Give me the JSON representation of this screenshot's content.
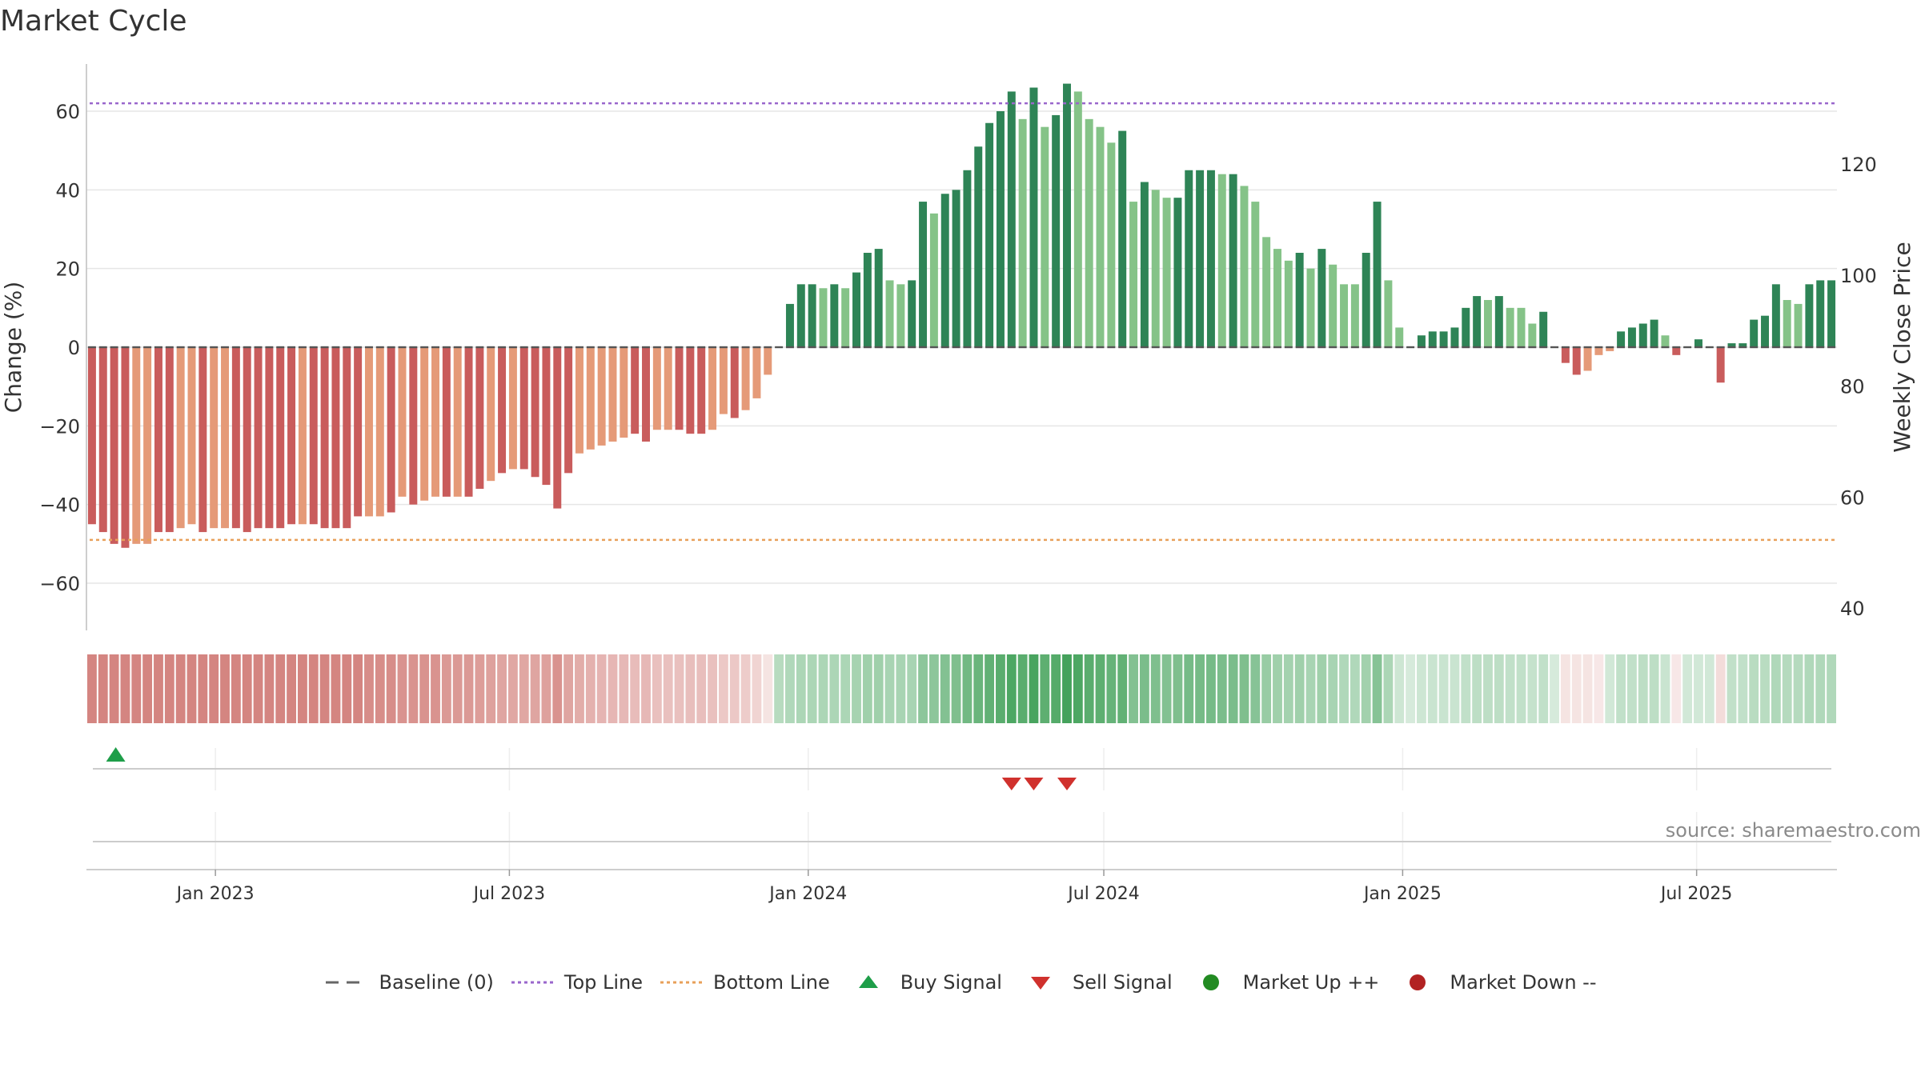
{
  "title": "Market Cycle",
  "source": "source: sharemaestro.com",
  "colors": {
    "down_strong": "#c95c5c",
    "down_light": "#e59a78",
    "up_strong": "#2e8456",
    "up_light": "#85c388",
    "top_line": "#9a66cc",
    "bottom_line": "#e8a05a",
    "baseline": "#666666",
    "buy": "#1e9e49",
    "sell": "#d0312d",
    "market_up": "#228b22",
    "market_down": "#b22222"
  },
  "legend": [
    {
      "label": "Baseline (0)",
      "icon": "dash-line"
    },
    {
      "label": "Top Line",
      "icon": "dotted-purple-line"
    },
    {
      "label": "Bottom Line",
      "icon": "dotted-orange-line"
    },
    {
      "label": "Buy Signal",
      "icon": "triangle-up"
    },
    {
      "label": "Sell Signal",
      "icon": "triangle-down"
    },
    {
      "label": "Market Up ++",
      "icon": "green-dot"
    },
    {
      "label": "Market Down --",
      "icon": "red-dot"
    }
  ],
  "chart_data": {
    "type": "bar",
    "ylabel": "Change (%)",
    "y2label": "Weekly Close Price",
    "ylim": [
      -72,
      72
    ],
    "yticks": [
      60,
      40,
      20,
      0,
      -20,
      -40,
      -60
    ],
    "ytick_labels": [
      "60",
      "40",
      "20",
      "0",
      "−20",
      "−40",
      "−60"
    ],
    "y2lim": [
      36,
      138
    ],
    "y2ticks": [
      120,
      100,
      80,
      60,
      40
    ],
    "y2tick_labels": [
      "120",
      "100",
      "80",
      "60",
      "40"
    ],
    "top_line": 62,
    "bottom_line": -49,
    "x_start": "2022-10-17",
    "x_end": "2025-09-22",
    "x_interval": "weekly",
    "xtick_dates": [
      "2023-01-01",
      "2023-07-01",
      "2024-01-01",
      "2024-07-01",
      "2025-01-01",
      "2025-07-01"
    ],
    "xtick_labels": [
      "Jan 2023",
      "Jul 2023",
      "Jan 2024",
      "Jul 2024",
      "Jan 2025",
      "Jul 2025"
    ],
    "values": [
      -45,
      -47,
      -50,
      -51,
      -50,
      -50,
      -47,
      -47,
      -46,
      -45,
      -47,
      -46,
      -46,
      -46,
      -47,
      -46,
      -46,
      -46,
      -45,
      -45,
      -45,
      -46,
      -46,
      -46,
      -43,
      -43,
      -43,
      -42,
      -38,
      -40,
      -39,
      -38,
      -38,
      -38,
      -38,
      -36,
      -34,
      -32,
      -31,
      -31,
      -33,
      -35,
      -41,
      -32,
      -27,
      -26,
      -25,
      -24,
      -23,
      -22,
      -24,
      -21,
      -21,
      -21,
      -22,
      -22,
      -21,
      -17,
      -18,
      -16,
      -13,
      -7,
      0,
      11,
      16,
      16,
      15,
      16,
      15,
      19,
      24,
      25,
      17,
      16,
      17,
      37,
      34,
      39,
      40,
      45,
      51,
      57,
      60,
      65,
      58,
      66,
      56,
      59,
      67,
      65,
      58,
      56,
      52,
      55,
      37,
      42,
      40,
      38,
      38,
      45,
      45,
      45,
      44,
      44,
      41,
      37,
      28,
      25,
      22,
      24,
      20,
      25,
      21,
      16,
      16,
      24,
      37,
      17,
      5,
      0,
      3,
      4,
      4,
      5,
      10,
      13,
      12,
      13,
      10,
      10,
      6,
      9,
      0,
      -4,
      -7,
      -6,
      -2,
      -1,
      4,
      5,
      6,
      7,
      3,
      -2,
      0,
      2,
      0,
      -9,
      1,
      1,
      7,
      8,
      16,
      12,
      11,
      16,
      17,
      17
    ],
    "emphasis": [
      1,
      1,
      1,
      1,
      0,
      0,
      1,
      1,
      0,
      0,
      1,
      0,
      0,
      1,
      1,
      1,
      1,
      1,
      1,
      0,
      1,
      1,
      1,
      1,
      1,
      0,
      0,
      1,
      0,
      1,
      0,
      0,
      1,
      0,
      1,
      1,
      0,
      1,
      0,
      1,
      1,
      1,
      1,
      1,
      0,
      0,
      0,
      0,
      0,
      1,
      1,
      0,
      0,
      1,
      1,
      1,
      0,
      0,
      1,
      0,
      0,
      0,
      1,
      1,
      1,
      1,
      0,
      1,
      0,
      1,
      1,
      1,
      0,
      0,
      1,
      1,
      0,
      1,
      1,
      1,
      1,
      1,
      1,
      1,
      0,
      1,
      0,
      1,
      1,
      0,
      0,
      0,
      0,
      1,
      0,
      1,
      0,
      0,
      1,
      1,
      1,
      1,
      0,
      1,
      0,
      0,
      0,
      0,
      0,
      1,
      0,
      1,
      0,
      0,
      0,
      1,
      1,
      0,
      0,
      1,
      1,
      1,
      1,
      1,
      1,
      1,
      0,
      1,
      0,
      0,
      0,
      1,
      1,
      1,
      1,
      0,
      0,
      0,
      1,
      1,
      1,
      1,
      0,
      1,
      1,
      1,
      1,
      1,
      1,
      1,
      1,
      1,
      1,
      0,
      0,
      1,
      1,
      1
    ],
    "heat": [
      -0.62,
      -0.62,
      -0.62,
      -0.62,
      -0.62,
      -0.62,
      -0.62,
      -0.62,
      -0.62,
      -0.62,
      -0.62,
      -0.62,
      -0.62,
      -0.62,
      -0.62,
      -0.62,
      -0.62,
      -0.62,
      -0.62,
      -0.62,
      -0.62,
      -0.62,
      -0.62,
      -0.62,
      -0.62,
      -0.58,
      -0.58,
      -0.58,
      -0.55,
      -0.55,
      -0.55,
      -0.55,
      -0.52,
      -0.52,
      -0.52,
      -0.5,
      -0.48,
      -0.46,
      -0.45,
      -0.45,
      -0.46,
      -0.48,
      -0.55,
      -0.46,
      -0.42,
      -0.4,
      -0.38,
      -0.37,
      -0.36,
      -0.34,
      -0.36,
      -0.32,
      -0.32,
      -0.32,
      -0.33,
      -0.33,
      -0.32,
      -0.28,
      -0.28,
      -0.26,
      -0.22,
      -0.14,
      0.35,
      0.38,
      0.4,
      0.4,
      0.4,
      0.4,
      0.4,
      0.43,
      0.46,
      0.46,
      0.42,
      0.42,
      0.42,
      0.55,
      0.55,
      0.6,
      0.62,
      0.68,
      0.72,
      0.76,
      0.8,
      0.86,
      0.8,
      0.88,
      0.78,
      0.82,
      0.9,
      0.86,
      0.8,
      0.78,
      0.74,
      0.76,
      0.6,
      0.64,
      0.62,
      0.6,
      0.62,
      0.66,
      0.66,
      0.66,
      0.64,
      0.64,
      0.62,
      0.58,
      0.5,
      0.46,
      0.44,
      0.46,
      0.42,
      0.46,
      0.42,
      0.38,
      0.38,
      0.45,
      0.58,
      0.4,
      0.24,
      0.2,
      0.24,
      0.26,
      0.26,
      0.26,
      0.3,
      0.32,
      0.32,
      0.32,
      0.3,
      0.3,
      0.28,
      0.3,
      0.2,
      -0.14,
      -0.14,
      -0.14,
      -0.12,
      0.22,
      0.3,
      0.3,
      0.32,
      0.32,
      0.26,
      -0.12,
      0.22,
      0.22,
      0.22,
      -0.18,
      0.3,
      0.3,
      0.34,
      0.34,
      0.38,
      0.36,
      0.36,
      0.38,
      0.38,
      0.38
    ],
    "buy_signals": [
      2
    ],
    "sell_signals": [
      83,
      85,
      88
    ]
  }
}
